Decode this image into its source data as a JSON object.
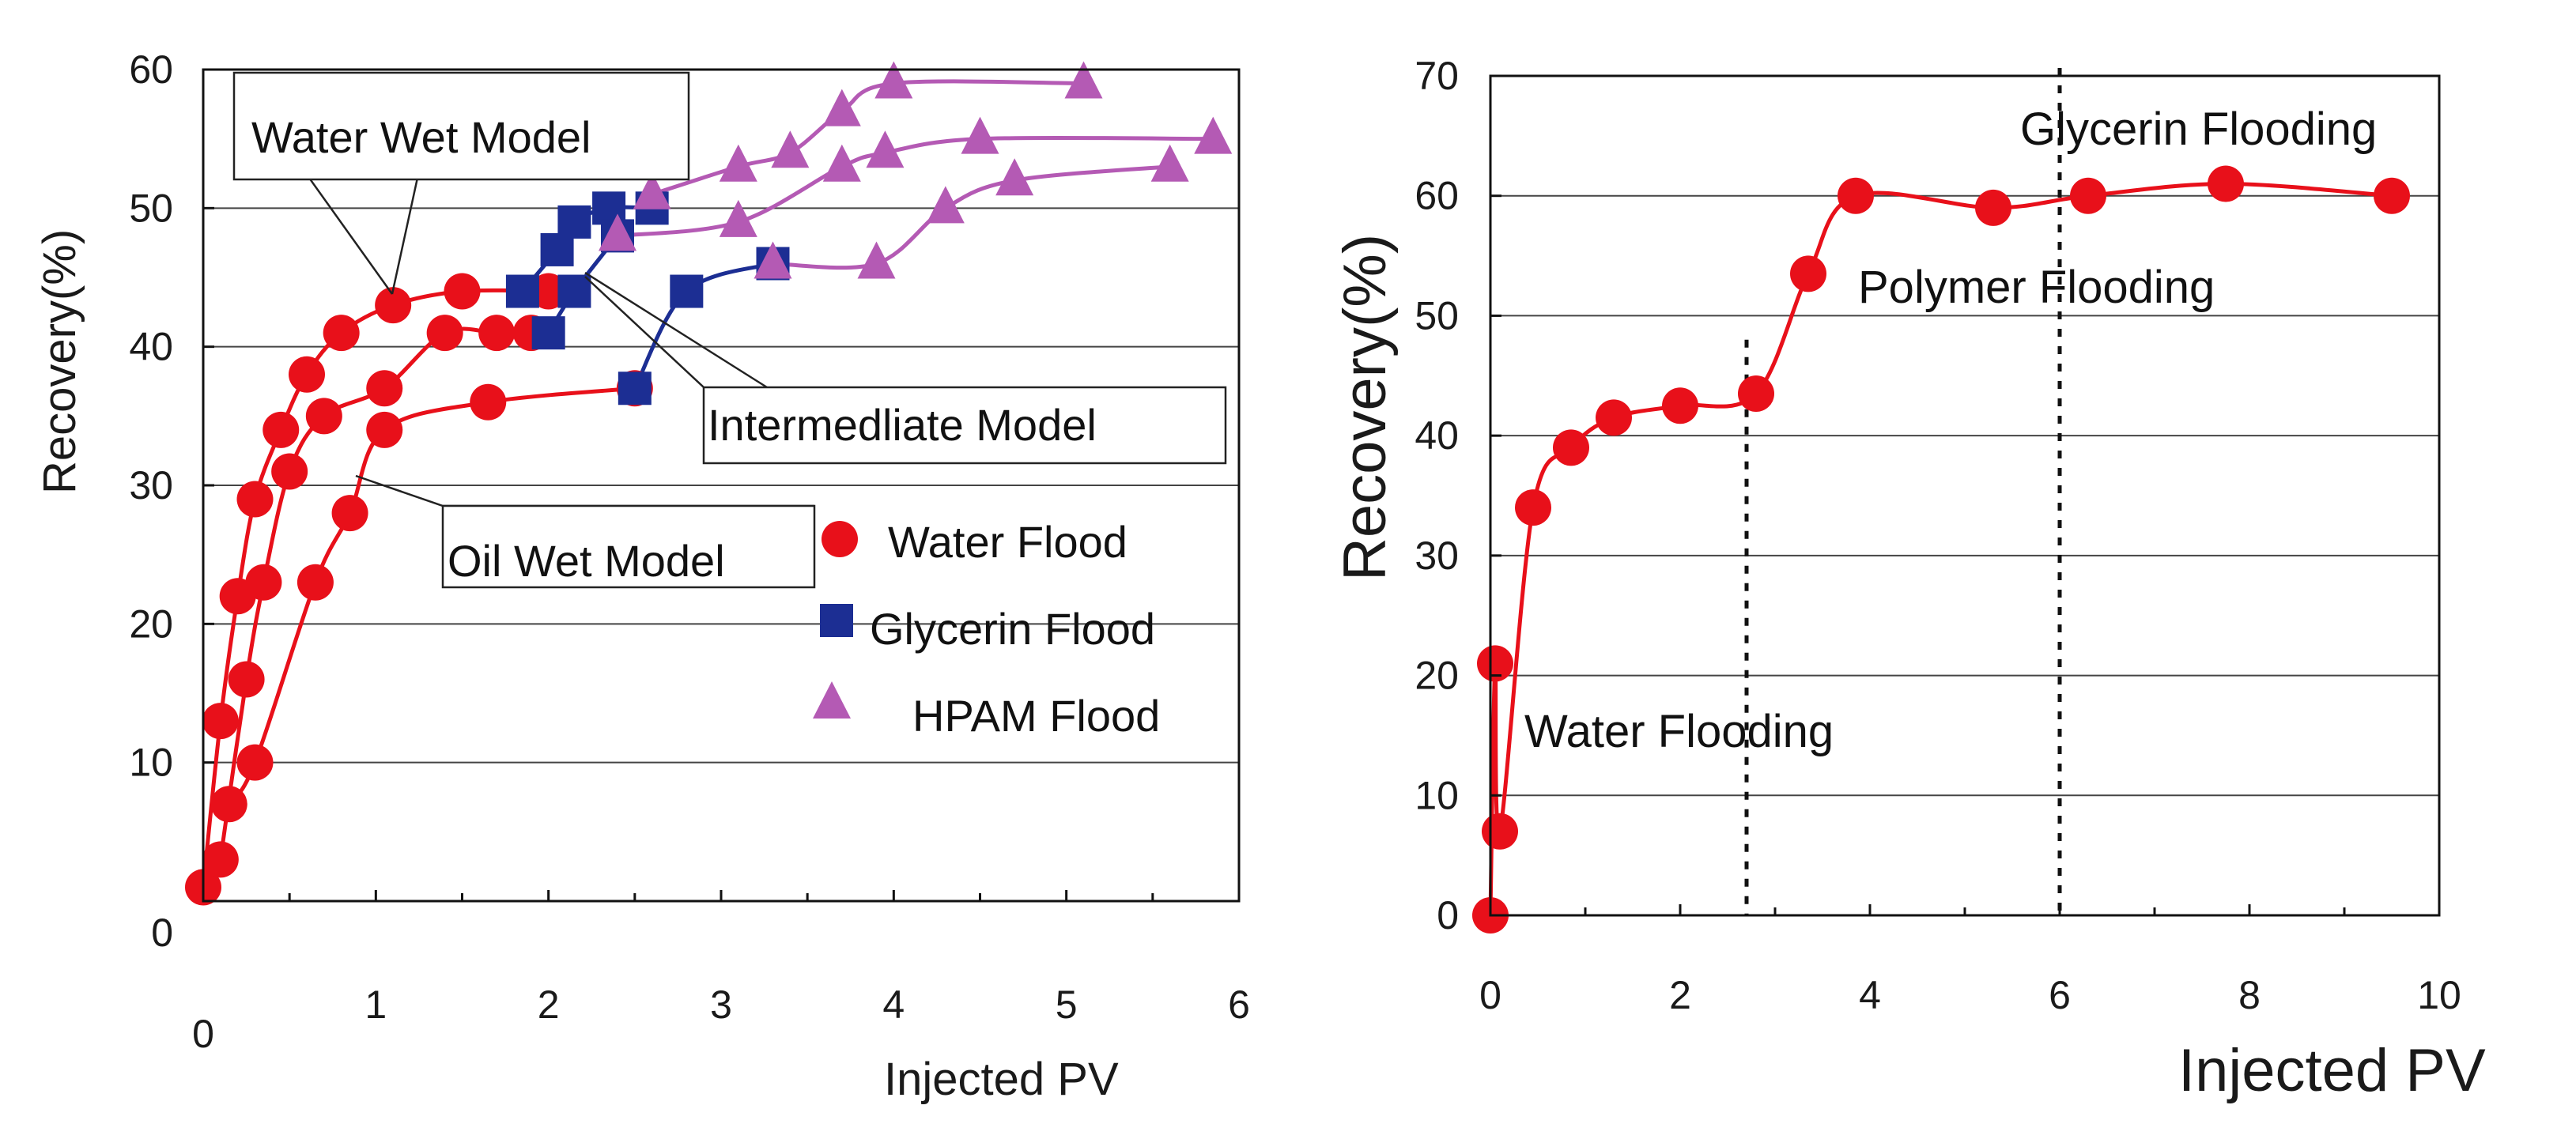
{
  "colors": {
    "water": "#e8101a",
    "glycerin": "#1c2e93",
    "hpam": "#b45ab4"
  },
  "chart_data": [
    {
      "type": "line",
      "xlabel": "Injected PV",
      "ylabel": "Recovery(%)",
      "xlim": [
        0,
        6
      ],
      "ylim": [
        0,
        60
      ],
      "xticks": [
        "0",
        "1",
        "2",
        "3",
        "4",
        "5",
        "6"
      ],
      "yticks": [
        "0",
        "10",
        "20",
        "30",
        "40",
        "50",
        "60"
      ],
      "grid": "horizontal",
      "legend": {
        "position": "center-right",
        "entries": [
          {
            "label": "Water Flood",
            "marker": "circle",
            "color": "water"
          },
          {
            "label": "Glycerin Flood",
            "marker": "square",
            "color": "glycerin"
          },
          {
            "label": "HPAM Flood",
            "marker": "triangle",
            "color": "hpam"
          }
        ]
      },
      "annotations": [
        {
          "text": "Water Wet Model",
          "points_to": [
            1.1,
            41
          ]
        },
        {
          "text": "Intermedliate  Model",
          "points_to": [
            2.2,
            44
          ]
        },
        {
          "text": "Oil Wet  Model",
          "points_to": [
            0.8,
            30
          ]
        }
      ],
      "series": [
        {
          "name": "Water Wet Model - Water Flood",
          "color": "water",
          "marker": "circle",
          "x": [
            0,
            0.1,
            0.2,
            0.3,
            0.45,
            0.6,
            0.8,
            1.1,
            1.5,
            2.0
          ],
          "y": [
            1,
            13,
            22,
            29,
            34,
            38,
            41,
            43,
            44,
            44
          ]
        },
        {
          "name": "Intermediate Model - Water Flood",
          "color": "water",
          "marker": "circle",
          "x": [
            0.1,
            0.25,
            0.35,
            0.5,
            0.7,
            1.05,
            1.4,
            1.7,
            1.9
          ],
          "y": [
            3,
            16,
            23,
            31,
            35,
            37,
            41,
            41,
            41
          ]
        },
        {
          "name": "Oil Wet Model - Water Flood",
          "color": "water",
          "marker": "circle",
          "x": [
            0.15,
            0.3,
            0.65,
            0.85,
            1.05,
            1.65,
            2.5
          ],
          "y": [
            7,
            10,
            23,
            28,
            34,
            36,
            37
          ]
        },
        {
          "name": "Water Wet Model - Glycerin Flood",
          "color": "glycerin",
          "marker": "square",
          "x": [
            1.85,
            2.05,
            2.15,
            2.35,
            2.6
          ],
          "y": [
            44,
            47,
            49,
            50,
            50
          ]
        },
        {
          "name": "Intermediate Model - Glycerin Flood",
          "color": "glycerin",
          "marker": "square",
          "x": [
            2.0,
            2.15,
            2.4
          ],
          "y": [
            41,
            44,
            48
          ]
        },
        {
          "name": "Oil Wet Model - Glycerin Flood",
          "color": "glycerin",
          "marker": "square",
          "x": [
            2.5,
            2.8,
            3.3
          ],
          "y": [
            37,
            44,
            46
          ]
        },
        {
          "name": "Water Wet Model - HPAM Flood",
          "color": "hpam",
          "marker": "triangle",
          "x": [
            2.6,
            3.1,
            3.4,
            3.7,
            4.0,
            5.1
          ],
          "y": [
            51,
            53,
            54,
            57,
            59,
            59
          ]
        },
        {
          "name": "Intermediate Model - HPAM Flood",
          "color": "hpam",
          "marker": "triangle",
          "x": [
            2.4,
            3.1,
            3.7,
            3.95,
            4.5,
            5.85
          ],
          "y": [
            48,
            49,
            53,
            54,
            55,
            55
          ]
        },
        {
          "name": "Oil Wet Model - HPAM Flood",
          "color": "hpam",
          "marker": "triangle",
          "x": [
            3.3,
            3.9,
            4.3,
            4.7,
            5.6
          ],
          "y": [
            46,
            46,
            50,
            52,
            53
          ]
        }
      ]
    },
    {
      "type": "line",
      "xlabel": "Injected PV",
      "ylabel": "Recovery(%)",
      "xlim": [
        0,
        10
      ],
      "ylim": [
        0,
        70
      ],
      "xticks": [
        "0",
        "2",
        "4",
        "6",
        "8",
        "10"
      ],
      "yticks": [
        "0",
        "10",
        "20",
        "30",
        "40",
        "50",
        "60",
        "70"
      ],
      "grid": "horizontal",
      "stages": [
        {
          "label": "Water Flooding",
          "x_end": 2.7
        },
        {
          "label": "Polymer Flooding",
          "x_end": 6.0
        },
        {
          "label": "Glycerin Flooding"
        }
      ],
      "series": [
        {
          "name": "Recovery",
          "color": "water",
          "marker": "circle",
          "x": [
            0,
            0.05,
            0.1,
            0.45,
            0.85,
            1.3,
            2.0,
            2.8,
            3.35,
            3.85,
            5.3,
            6.3,
            7.75,
            9.5
          ],
          "y": [
            0,
            21,
            7,
            34,
            39,
            41.5,
            42.5,
            43.5,
            53.5,
            60,
            59,
            60,
            61,
            60
          ]
        }
      ]
    }
  ]
}
